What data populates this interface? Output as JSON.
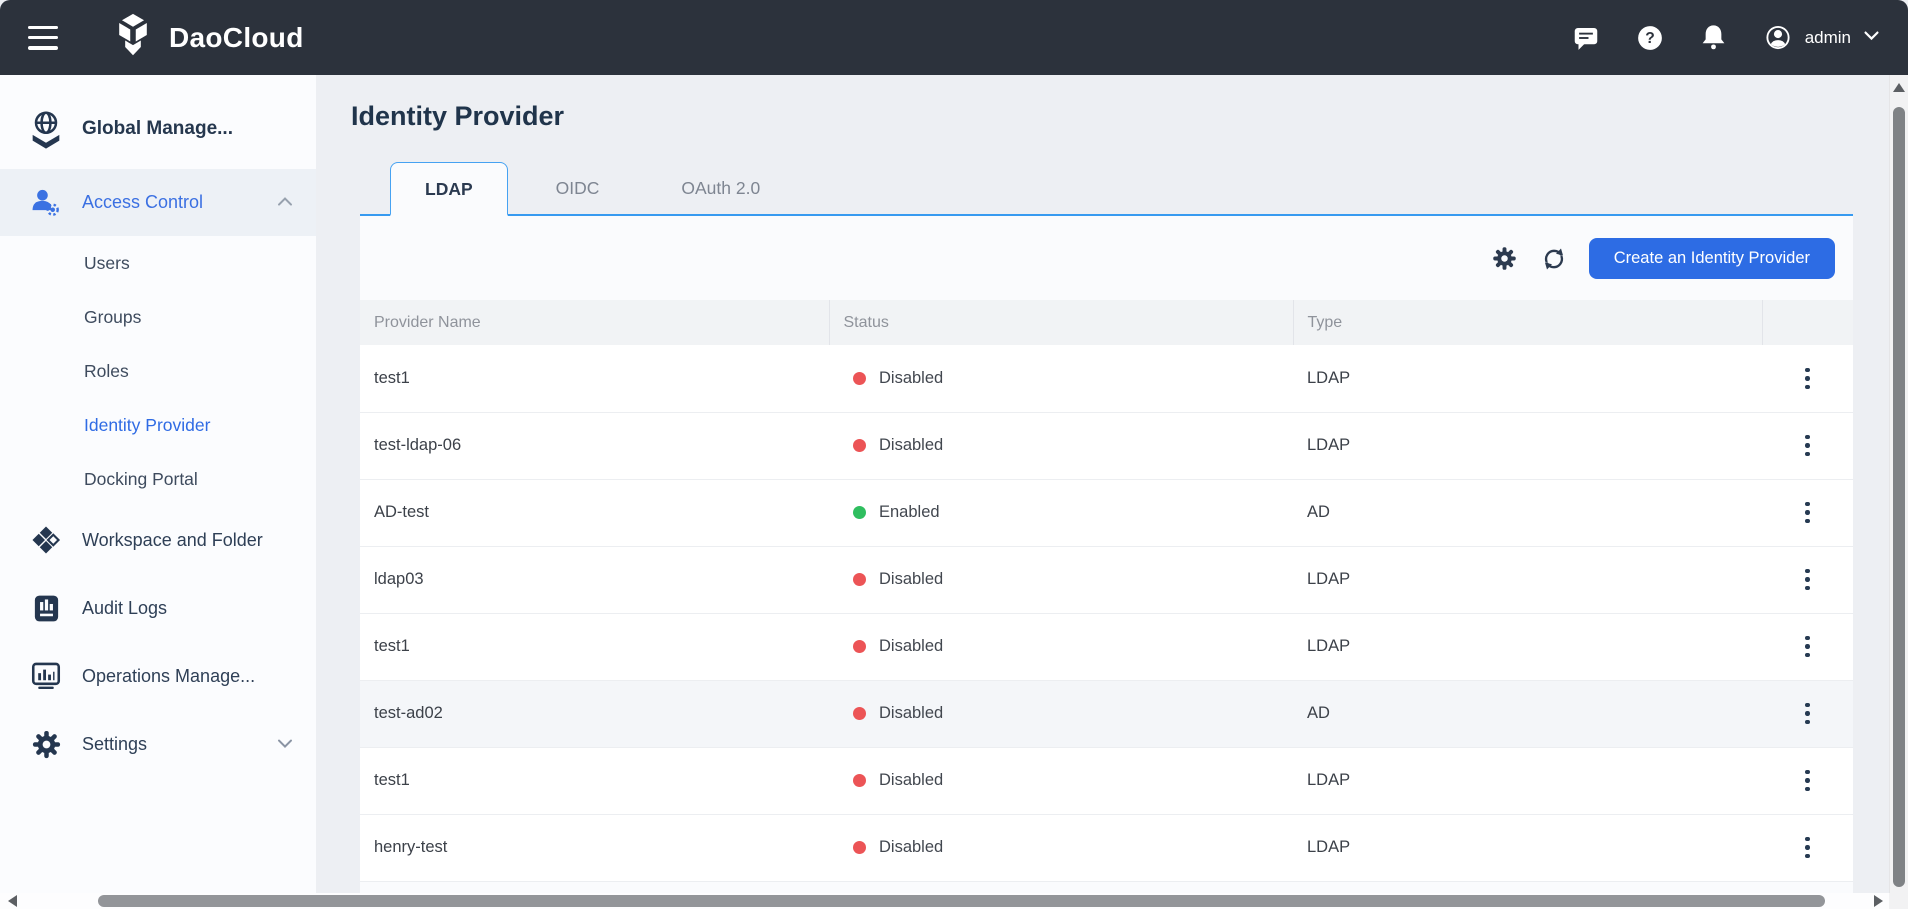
{
  "header": {
    "brand": "DaoCloud",
    "user_label": "admin",
    "icons": [
      "hamburger-icon",
      "daocloud-logo",
      "chat-icon",
      "help-icon",
      "bell-icon",
      "avatar",
      "chevron-down-icon"
    ]
  },
  "sidebar": {
    "root": {
      "label": "Global Manage...",
      "icon": "globe-icon"
    },
    "access_control": {
      "label": "Access Control",
      "icon": "user-gear-icon",
      "expanded": true,
      "children": [
        {
          "label": "Users",
          "active": false
        },
        {
          "label": "Groups",
          "active": false
        },
        {
          "label": "Roles",
          "active": false
        },
        {
          "label": "Identity Provider",
          "active": true
        },
        {
          "label": "Docking Portal",
          "active": false
        }
      ]
    },
    "items": [
      {
        "label": "Workspace and Folder",
        "icon": "workspace-icon"
      },
      {
        "label": "Audit Logs",
        "icon": "audit-logs-icon"
      },
      {
        "label": "Operations Manage...",
        "icon": "operations-icon"
      },
      {
        "label": "Settings",
        "icon": "settings-gear-icon",
        "collapsed": true
      }
    ]
  },
  "main": {
    "title": "Identity Provider",
    "tabs": [
      {
        "label": "LDAP",
        "active": true
      },
      {
        "label": "OIDC",
        "active": false
      },
      {
        "label": "OAuth 2.0",
        "active": false
      }
    ],
    "toolbar": {
      "create_label": "Create an Identity Provider",
      "icons": [
        "table-settings-gear-icon",
        "refresh-icon"
      ]
    },
    "table": {
      "columns": [
        "Provider Name",
        "Status",
        "Type",
        ""
      ],
      "rows": [
        {
          "name": "test1",
          "status": "Disabled",
          "type": "LDAP",
          "highlight": false
        },
        {
          "name": "test-ldap-06",
          "status": "Disabled",
          "type": "LDAP",
          "highlight": false
        },
        {
          "name": "AD-test",
          "status": "Enabled",
          "type": "AD",
          "highlight": false
        },
        {
          "name": "ldap03",
          "status": "Disabled",
          "type": "LDAP",
          "highlight": false
        },
        {
          "name": "test1",
          "status": "Disabled",
          "type": "LDAP",
          "highlight": false
        },
        {
          "name": "test-ad02",
          "status": "Disabled",
          "type": "AD",
          "highlight": true
        },
        {
          "name": "test1",
          "status": "Disabled",
          "type": "LDAP",
          "highlight": false
        },
        {
          "name": "henry-test",
          "status": "Disabled",
          "type": "LDAP",
          "highlight": false
        }
      ]
    }
  },
  "colors": {
    "header_dark": "#2c323c",
    "accent_blue": "#2d6ce4",
    "tab_border_blue": "#46a2f2",
    "sidebar_active_blue": "#2f6be4",
    "status_disabled_red": "#ec5456",
    "status_enabled_green": "#2fbe5f"
  }
}
